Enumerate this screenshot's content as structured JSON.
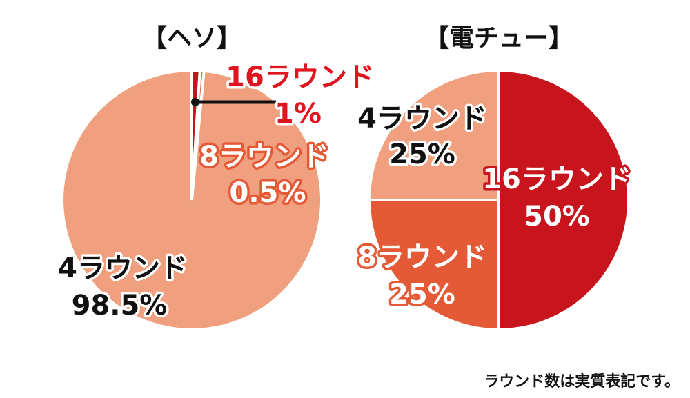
{
  "chart_data": [
    {
      "type": "pie",
      "title": "【ヘソ】",
      "slices": [
        {
          "label": "16ラウンド",
          "value": 1,
          "value_label": "1%",
          "color": "#c8141c"
        },
        {
          "label": "8ラウンド",
          "value": 0.5,
          "value_label": "0.5%",
          "color": "#e4603d"
        },
        {
          "label": "4ラウンド",
          "value": 98.5,
          "value_label": "98.5%",
          "color": "#f0a07f"
        }
      ]
    },
    {
      "type": "pie",
      "title": "【電チュー】",
      "slices": [
        {
          "label": "16ラウンド",
          "value": 50,
          "value_label": "50%",
          "color": "#c8141c"
        },
        {
          "label": "8ラウンド",
          "value": 25,
          "value_label": "25%",
          "color": "#e45a37"
        },
        {
          "label": "4ラウンド",
          "value": 25,
          "value_label": "25%",
          "color": "#f0a07f"
        }
      ]
    }
  ],
  "footnote": "ラウンド数は実質表記です。"
}
